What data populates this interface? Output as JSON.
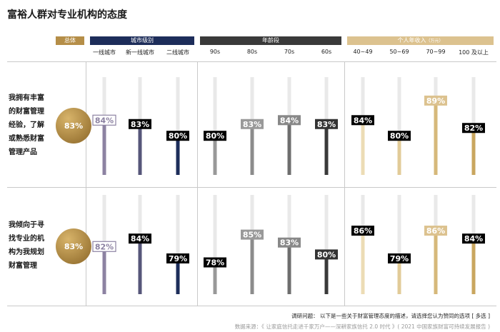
{
  "title": "富裕人群对专业机构的态度",
  "header": {
    "overall": "总体",
    "city": "城市级别",
    "age": "年龄段",
    "income": "个人年收入",
    "income_unit": "（万元）"
  },
  "colors": {
    "gold": "#b58e48",
    "navy": "#1d2d5a",
    "dark": "#3a3a3a",
    "tan": "#dcc28f"
  },
  "row_labels": [
    [
      "我拥有丰富",
      "的财富管理",
      "经验，了解",
      "或熟悉财富",
      "管理产品"
    ],
    [
      "我倾向于寻",
      "找专业的机",
      "构为我规划",
      "财富管理"
    ]
  ],
  "footnote": {
    "question": "调研问题： 以下是一些关于财富管理态度的描述，请选择您认为赞同的选项 [ 多选 ]",
    "source": "数据来源：《 让家庭信托走进千家万户——深耕家族信托 2.0 时代 》( 2021 中国家族财富可持续发展报告 )"
  },
  "chart_data": {
    "type": "bar",
    "categories": [
      "一线城市",
      "新一线城市",
      "二线城市",
      "90s",
      "80s",
      "70s",
      "60s",
      "40~49",
      "50~69",
      "70~99",
      "100 及以上"
    ],
    "groups": [
      {
        "name": "城市级别",
        "categories": [
          "一线城市",
          "新一线城市",
          "二线城市"
        ]
      },
      {
        "name": "年龄段",
        "categories": [
          "90s",
          "80s",
          "70s",
          "60s"
        ]
      },
      {
        "name": "个人年收入",
        "categories": [
          "40~49",
          "50~69",
          "70~99",
          "100 及以上"
        ]
      }
    ],
    "series": [
      {
        "overall": "83%",
        "values": [
          84,
          83,
          80,
          80,
          83,
          84,
          83,
          84,
          80,
          89,
          82
        ],
        "labels": [
          "84%",
          "83%",
          "80%",
          "80%",
          "83%",
          "84%",
          "83%",
          "84%",
          "80%",
          "89%",
          "82%"
        ]
      },
      {
        "overall": "83%",
        "values": [
          82,
          84,
          79,
          78,
          85,
          83,
          80,
          86,
          79,
          86,
          84
        ],
        "labels": [
          "82%",
          "84%",
          "79%",
          "78%",
          "85%",
          "83%",
          "80%",
          "86%",
          "79%",
          "86%",
          "84%"
        ]
      }
    ],
    "ylim": [
      0,
      100
    ]
  }
}
